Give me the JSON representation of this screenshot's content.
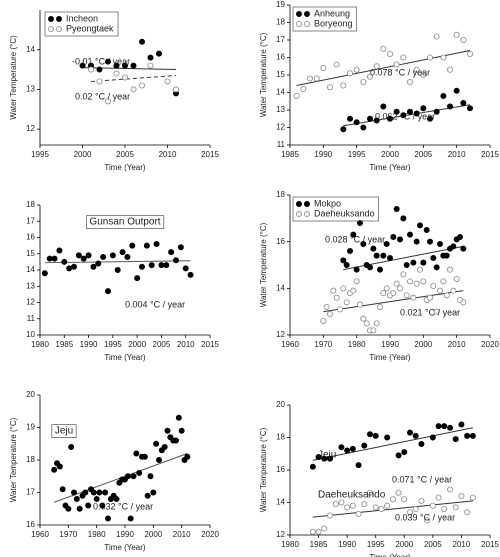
{
  "chart_data": [
    {
      "type": "scatter",
      "xlabel": "Time (Year)",
      "ylabel": "Water Temperature (°C)",
      "legend": "box",
      "xlim": [
        1995,
        2015
      ],
      "xticks": [
        1995,
        2000,
        2005,
        2010,
        2015
      ],
      "ylim": [
        11.6,
        15.0
      ],
      "yticks": [
        12,
        13,
        14
      ],
      "series": [
        {
          "name": "Incheon",
          "marker": "filled",
          "x": [
            2000,
            2001,
            2002,
            2003,
            2004,
            2005,
            2006,
            2007,
            2008,
            2009,
            2011
          ],
          "values": [
            13.6,
            13.6,
            13.5,
            13.7,
            13.6,
            13.6,
            13.6,
            14.2,
            13.8,
            13.9,
            12.9
          ],
          "trend": {
            "x": [
              2000,
              2011
            ],
            "y": [
              13.55,
              13.5
            ],
            "style": "solid"
          }
        },
        {
          "name": "Pyeongtaek",
          "marker": "open",
          "x": [
            2001,
            2002,
            2003,
            2004,
            2005,
            2006,
            2007,
            2008,
            2010,
            2011
          ],
          "values": [
            13.5,
            13.2,
            12.7,
            13.4,
            13.3,
            13.0,
            13.1,
            13.6,
            13.2,
            13.0
          ],
          "trend": {
            "x": [
              2001,
              2011
            ],
            "y": [
              13.2,
              13.35
            ],
            "style": "dashed"
          }
        }
      ],
      "annotations": [
        "-0.01 °C / year",
        "0.02 °C / year"
      ]
    },
    {
      "type": "scatter",
      "xlabel": "Time (Year)",
      "ylabel": "Water Temperature (°C)",
      "legend": "box",
      "xlim": [
        1985,
        2015
      ],
      "xticks": [
        1985,
        1990,
        1995,
        2000,
        2005,
        2010,
        2015
      ],
      "ylim": [
        11,
        19
      ],
      "yticks": [
        11,
        12,
        13,
        14,
        15,
        16,
        17,
        18,
        19
      ],
      "series": [
        {
          "name": "Anheung",
          "marker": "filled",
          "x": [
            1993,
            1994,
            1995,
            1996,
            1997,
            1998,
            1999,
            2000,
            2001,
            2002,
            2003,
            2004,
            2005,
            2006,
            2007,
            2008,
            2009,
            2010,
            2011,
            2012
          ],
          "values": [
            11.9,
            12.5,
            12.3,
            12.0,
            12.5,
            12.4,
            13.2,
            12.5,
            12.9,
            12.7,
            12.9,
            12.8,
            13.1,
            12.5,
            12.9,
            13.8,
            13.2,
            14.1,
            13.4,
            13.1
          ],
          "trend": {
            "x": [
              1993,
              2012
            ],
            "y": [
              12.1,
              13.3
            ],
            "style": "solid"
          }
        },
        {
          "name": "Boryeong",
          "marker": "open",
          "x": [
            1986,
            1987,
            1988,
            1989,
            1990,
            1991,
            1992,
            1993,
            1994,
            1995,
            1996,
            1997,
            1998,
            1999,
            2000,
            2001,
            2002,
            2003,
            2004,
            2005,
            2006,
            2007,
            2008,
            2009,
            2010,
            2011,
            2012
          ],
          "values": [
            13.8,
            14.2,
            14.8,
            14.8,
            15.4,
            14.3,
            15.6,
            14.4,
            15.1,
            15.3,
            14.6,
            14.9,
            15.5,
            16.5,
            16.2,
            15.6,
            16.0,
            14.6,
            15.3,
            15.0,
            16.0,
            17.2,
            16.0,
            15.3,
            17.3,
            17.0,
            16.2
          ],
          "trend": {
            "x": [
              1986,
              2012
            ],
            "y": [
              14.4,
              16.4
            ],
            "style": "solid"
          }
        }
      ],
      "annotations": [
        "0.078 °C / year",
        "0.062 °C / year"
      ]
    },
    {
      "type": "scatter",
      "title": "Gunsan Outport",
      "xlabel": "Time (Year)",
      "xlim": [
        1980,
        2015
      ],
      "xticks": [
        1980,
        1985,
        1990,
        1995,
        2000,
        2005,
        2010,
        2015
      ],
      "ylim": [
        10,
        18
      ],
      "yticks": [
        10,
        11,
        12,
        13,
        14,
        15,
        16,
        17,
        18
      ],
      "series": [
        {
          "marker": "filled",
          "x": [
            1981,
            1982,
            1983,
            1984,
            1985,
            1986,
            1987,
            1988,
            1989,
            1990,
            1991,
            1992,
            1993,
            1994,
            1995,
            1996,
            1997,
            1998,
            1999,
            2000,
            2001,
            2002,
            2003,
            2004,
            2005,
            2006,
            2007,
            2008,
            2009,
            2010,
            2011
          ],
          "values": [
            13.8,
            14.7,
            14.7,
            15.2,
            14.5,
            14.1,
            14.2,
            14.9,
            14.7,
            14.9,
            14.2,
            14.4,
            14.8,
            12.7,
            14.9,
            14.0,
            15.1,
            14.8,
            15.5,
            13.5,
            14.2,
            15.5,
            14.3,
            15.6,
            14.3,
            14.3,
            15.1,
            14.6,
            15.4,
            14.1,
            13.7
          ],
          "trend": {
            "x": [
              1981,
              2011
            ],
            "y": [
              14.45,
              14.57
            ],
            "style": "solid"
          }
        }
      ],
      "annotations": [
        "0.004 °C / year"
      ]
    },
    {
      "type": "scatter",
      "xlabel": "Time (Year)",
      "ylabel": "Water Temperature (°C)",
      "legend": "box",
      "xlim": [
        1960,
        2020
      ],
      "xticks": [
        1960,
        1970,
        1980,
        1990,
        2000,
        2010,
        2020
      ],
      "ylim": [
        12,
        18
      ],
      "yticks": [
        12,
        14,
        16,
        18
      ],
      "series": [
        {
          "name": "Mokpo",
          "marker": "filled",
          "x": [
            1976,
            1977,
            1978,
            1979,
            1980,
            1981,
            1982,
            1983,
            1984,
            1985,
            1986,
            1987,
            1988,
            1989,
            1990,
            1991,
            1992,
            1993,
            1994,
            1995,
            1996,
            1997,
            1998,
            1999,
            2000,
            2001,
            2002,
            2003,
            2004,
            2005,
            2006,
            2007,
            2008,
            2009,
            2010,
            2011,
            2012
          ],
          "values": [
            15.2,
            15.0,
            15.6,
            16.3,
            14.8,
            16.8,
            15.9,
            15.0,
            14.9,
            15.7,
            15.4,
            14.8,
            15.4,
            15.9,
            15.3,
            16.2,
            17.4,
            16.1,
            17.0,
            15.0,
            16.3,
            15.1,
            16.0,
            16.7,
            15.1,
            16.5,
            16.0,
            15.3,
            14.9,
            15.9,
            15.4,
            15.4,
            15.7,
            15.8,
            16.1,
            16.2,
            15.7
          ],
          "trend": {
            "x": [
              1976,
              2012
            ],
            "y": [
              14.8,
              15.8
            ],
            "style": "solid"
          }
        },
        {
          "name": "Daeheuksando",
          "marker": "open",
          "x": [
            1970,
            1971,
            1972,
            1973,
            1974,
            1975,
            1976,
            1977,
            1978,
            1979,
            1980,
            1981,
            1982,
            1983,
            1984,
            1985,
            1986,
            1987,
            1988,
            1989,
            1990,
            1991,
            1992,
            1993,
            1994,
            1995,
            1996,
            1997,
            1998,
            1999,
            2000,
            2001,
            2002,
            2003,
            2004,
            2005,
            2006,
            2007,
            2008,
            2009,
            2010,
            2011,
            2012
          ],
          "values": [
            12.6,
            13.2,
            12.9,
            13.9,
            13.6,
            13.1,
            14.0,
            13.4,
            13.8,
            13.9,
            14.3,
            13.3,
            12.7,
            12.5,
            12.2,
            12.2,
            12.5,
            13.2,
            13.8,
            14.0,
            13.7,
            13.8,
            14.2,
            14.0,
            14.6,
            13.7,
            14.3,
            13.6,
            14.2,
            14.8,
            14.3,
            13.5,
            13.6,
            14.1,
            13.0,
            13.9,
            14.3,
            13.7,
            14.8,
            13.9,
            14.4,
            13.5,
            13.4
          ],
          "trend": {
            "x": [
              1970,
              2012
            ],
            "y": [
              13.0,
              13.9
            ],
            "style": "solid"
          }
        }
      ],
      "annotations": [
        "0.028 °C / year",
        "0.021 °C / year"
      ]
    },
    {
      "type": "scatter",
      "title": "Jeju",
      "xlabel": "Time (Year)",
      "ylabel": "Water Temperature (°C)",
      "xlim": [
        1960,
        2020
      ],
      "xticks": [
        1960,
        1970,
        1980,
        1990,
        2000,
        2010,
        2020
      ],
      "ylim": [
        16,
        20
      ],
      "yticks": [
        16,
        17,
        18,
        19,
        20
      ],
      "series": [
        {
          "marker": "filled",
          "x": [
            1965,
            1966,
            1967,
            1968,
            1969,
            1970,
            1971,
            1972,
            1973,
            1974,
            1975,
            1976,
            1977,
            1978,
            1979,
            1980,
            1981,
            1982,
            1983,
            1984,
            1985,
            1986,
            1987,
            1988,
            1989,
            1990,
            1991,
            1992,
            1993,
            1994,
            1995,
            1996,
            1997,
            1998,
            1999,
            2000,
            2001,
            2002,
            2003,
            2004,
            2005,
            2006,
            2007,
            2008,
            2009,
            2010,
            2011,
            2012
          ],
          "values": [
            17.7,
            17.9,
            17.8,
            17.1,
            16.6,
            16.5,
            18.4,
            17.0,
            16.8,
            16.5,
            16.9,
            17.0,
            16.6,
            17.1,
            17.0,
            16.8,
            17.0,
            16.6,
            17.0,
            16.2,
            16.8,
            16.9,
            16.8,
            17.3,
            17.4,
            17.4,
            17.5,
            16.2,
            17.5,
            18.2,
            17.6,
            18.1,
            18.1,
            16.9,
            17.5,
            17.0,
            18.5,
            18.0,
            18.3,
            18.4,
            18.9,
            18.7,
            18.6,
            18.6,
            19.3,
            18.9,
            18.0,
            18.1
          ],
          "trend": {
            "x": [
              1965,
              2012
            ],
            "y": [
              16.7,
              18.2
            ],
            "style": "solid"
          }
        }
      ],
      "annotations": [
        "0.032 °C / year"
      ]
    },
    {
      "type": "scatter",
      "xlabel": "Time (Year)",
      "ylabel": "Water Temperature (°C)",
      "legend": "inline",
      "xlim": [
        1980,
        2015
      ],
      "xticks": [
        1980,
        1985,
        1990,
        1995,
        2000,
        2005,
        2010,
        2015
      ],
      "ylim": [
        12,
        20
      ],
      "yticks": [
        12,
        14,
        16,
        18,
        20
      ],
      "series": [
        {
          "name": "Jeju",
          "marker": "filled",
          "x": [
            1984,
            1985,
            1986,
            1987,
            1989,
            1990,
            1991,
            1992,
            1993,
            1994,
            1995,
            1997,
            1999,
            2000,
            2001,
            2002,
            2003,
            2005,
            2006,
            2007,
            2008,
            2009,
            2010,
            2011,
            2012
          ],
          "values": [
            16.2,
            16.8,
            16.7,
            16.7,
            17.4,
            17.2,
            17.3,
            16.3,
            17.5,
            18.2,
            18.1,
            18.0,
            16.9,
            17.1,
            18.3,
            18.1,
            17.6,
            18.0,
            18.7,
            18.7,
            18.6,
            17.9,
            18.8,
            18.1,
            18.1
          ],
          "trend": {
            "x": [
              1984,
              2012
            ],
            "y": [
              16.6,
              18.6
            ],
            "style": "solid"
          }
        },
        {
          "name": "Daeheuksando",
          "marker": "open",
          "x": [
            1984,
            1985,
            1986,
            1987,
            1988,
            1989,
            1990,
            1991,
            1992,
            1993,
            1994,
            1995,
            1996,
            1997,
            1998,
            1999,
            2000,
            2001,
            2002,
            2003,
            2004,
            2005,
            2006,
            2007,
            2008,
            2009,
            2010,
            2011,
            2012
          ],
          "values": [
            12.2,
            12.2,
            12.4,
            13.2,
            13.9,
            14.0,
            13.7,
            13.8,
            13.3,
            13.9,
            14.6,
            13.7,
            13.6,
            13.8,
            14.2,
            14.6,
            14.2,
            13.4,
            13.6,
            14.1,
            12.9,
            13.8,
            14.3,
            13.6,
            14.8,
            13.7,
            14.4,
            13.4,
            14.3
          ],
          "trend": {
            "x": [
              1984,
              2012
            ],
            "y": [
              13.1,
              14.1
            ],
            "style": "solid"
          }
        }
      ],
      "annotations": [
        "0.071 °C / year",
        "0.039 °C / year"
      ]
    }
  ]
}
